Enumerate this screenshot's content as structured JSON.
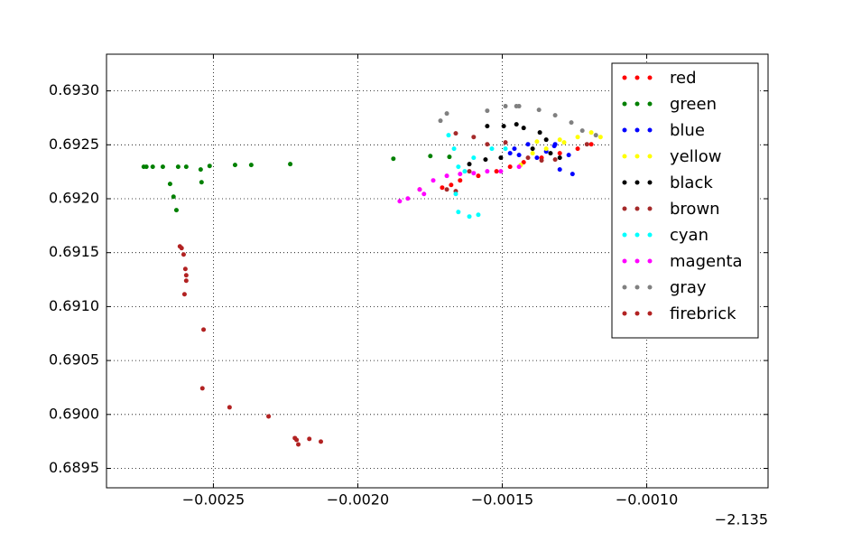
{
  "chart_data": {
    "type": "scatter",
    "x_offset_label": "−2.135",
    "xlim": [
      -0.00287,
      -0.00058
    ],
    "ylim": [
      0.68932,
      0.69334
    ],
    "xticks": [
      {
        "value": -0.0025,
        "label": "−0.0025"
      },
      {
        "value": -0.002,
        "label": "−0.0020"
      },
      {
        "value": -0.0015,
        "label": "−0.0015"
      },
      {
        "value": -0.001,
        "label": "−0.0010"
      }
    ],
    "yticks": [
      {
        "value": 0.6895,
        "label": "0.6895"
      },
      {
        "value": 0.69,
        "label": "0.6900"
      },
      {
        "value": 0.6905,
        "label": "0.6905"
      },
      {
        "value": 0.691,
        "label": "0.6910"
      },
      {
        "value": 0.6915,
        "label": "0.6915"
      },
      {
        "value": 0.692,
        "label": "0.6920"
      },
      {
        "value": 0.6925,
        "label": "0.6925"
      },
      {
        "value": 0.693,
        "label": "0.6930"
      }
    ],
    "grid": true,
    "legend": "upper right",
    "series": [
      {
        "name": "red",
        "color": "#ff0000",
        "x": [
          -0.001708,
          -0.001677,
          -0.001646,
          -0.001583,
          -0.00152,
          -0.001473,
          -0.001426,
          -0.001364,
          -0.001301,
          -0.001239,
          -0.001192,
          -0.001786
        ],
        "values": [
          0.692103,
          0.692128,
          0.69217,
          0.692212,
          0.692254,
          0.692296,
          0.692338,
          0.69238,
          0.692422,
          0.692464,
          0.692505,
          0.692086
        ]
      },
      {
        "name": "green",
        "color": "#008000",
        "x": [
          -0.002741,
          -0.002732,
          -0.00271,
          -0.002675,
          -0.002622,
          -0.002594,
          -0.002544,
          -0.002513,
          -0.002425,
          -0.002369,
          -0.002234,
          -0.00265,
          -0.002638,
          -0.002628,
          -0.002541,
          -0.001877,
          -0.001749,
          -0.001683
        ],
        "values": [
          0.692296,
          0.692296,
          0.692296,
          0.692296,
          0.692296,
          0.692296,
          0.692271,
          0.692304,
          0.692313,
          0.692313,
          0.692321,
          0.692137,
          0.692019,
          0.691894,
          0.692153,
          0.692371,
          0.692396,
          0.692388
        ]
      },
      {
        "name": "blue",
        "color": "#0000ff",
        "x": [
          -0.001473,
          -0.001442,
          -0.001411,
          -0.00138,
          -0.001348,
          -0.001317,
          -0.001301,
          -0.00127,
          -0.001257,
          -0.00132,
          -0.001458
        ],
        "values": [
          0.692422,
          0.692405,
          0.692505,
          0.69238,
          0.692438,
          0.692505,
          0.692271,
          0.692405,
          0.692229,
          0.692489,
          0.692464
        ]
      },
      {
        "name": "yellow",
        "color": "#ffff00",
        "x": [
          -0.001436,
          -0.001395,
          -0.001348,
          -0.001301,
          -0.001239,
          -0.001192,
          -0.00116,
          -0.00138,
          -0.001286
        ],
        "values": [
          0.692313,
          0.692422,
          0.692464,
          0.692547,
          0.692572,
          0.692614,
          0.692572,
          0.69253,
          0.692522
        ]
      },
      {
        "name": "black",
        "color": "#000000",
        "x": [
          -0.001614,
          -0.001558,
          -0.001505,
          -0.001495,
          -0.001451,
          -0.001426,
          -0.00137,
          -0.001348,
          -0.001301,
          -0.001333,
          -0.001552,
          -0.001395
        ],
        "values": [
          0.692321,
          0.692363,
          0.69238,
          0.692673,
          0.69269,
          0.692656,
          0.692614,
          0.692547,
          0.69238,
          0.692422,
          0.692673,
          0.692464
        ]
      },
      {
        "name": "brown",
        "color": "#a52a2a",
        "x": [
          -0.001661,
          -0.001599,
          -0.001552,
          -0.001489,
          -0.001411,
          -0.001364,
          -0.001614,
          -0.001692,
          -0.001661,
          -0.001317,
          -0.001207
        ],
        "values": [
          0.692606,
          0.692572,
          0.692505,
          0.692522,
          0.69238,
          0.692355,
          0.692254,
          0.692086,
          0.69207,
          0.692363,
          0.692505
        ]
      },
      {
        "name": "cyan",
        "color": "#00ffff",
        "x": [
          -0.001686,
          -0.001667,
          -0.001652,
          -0.001661,
          -0.001652,
          -0.001614,
          -0.001583,
          -0.00163,
          -0.001599,
          -0.001536,
          -0.001489
        ],
        "values": [
          0.692589,
          0.692464,
          0.692296,
          0.692044,
          0.691877,
          0.691835,
          0.691851,
          0.692254,
          0.69238,
          0.692464,
          0.692464
        ]
      },
      {
        "name": "magenta",
        "color": "#ff00ff",
        "x": [
          -0.001855,
          -0.001827,
          -0.001786,
          -0.001739,
          -0.001692,
          -0.001646,
          -0.001599,
          -0.001552,
          -0.001505,
          -0.001442,
          -0.001771
        ],
        "values": [
          0.691977,
          0.692002,
          0.692086,
          0.69217,
          0.692212,
          0.692229,
          0.692237,
          0.692254,
          0.692254,
          0.692296,
          0.692044
        ]
      },
      {
        "name": "gray",
        "color": "#808080",
        "x": [
          -0.001714,
          -0.001692,
          -0.001552,
          -0.001489,
          -0.001451,
          -0.001442,
          -0.001373,
          -0.001317,
          -0.001261,
          -0.001176,
          -0.001223
        ],
        "values": [
          0.692723,
          0.69279,
          0.692816,
          0.692858,
          0.692858,
          0.692858,
          0.692824,
          0.692774,
          0.692707,
          0.692589,
          0.692631
        ]
      },
      {
        "name": "firebrick",
        "color": "#b22222",
        "x": [
          -0.002616,
          -0.00261,
          -0.002603,
          -0.002597,
          -0.002594,
          -0.002594,
          -0.0026,
          -0.002534,
          -0.002538,
          -0.002444,
          -0.002309,
          -0.002218,
          -0.002212,
          -0.002206,
          -0.002168,
          -0.002128
        ],
        "values": [
          0.691558,
          0.691542,
          0.691483,
          0.691349,
          0.69129,
          0.69124,
          0.691114,
          0.690787,
          0.690242,
          0.690066,
          0.689982,
          0.689781,
          0.689764,
          0.689722,
          0.689773,
          0.689748
        ]
      }
    ]
  }
}
